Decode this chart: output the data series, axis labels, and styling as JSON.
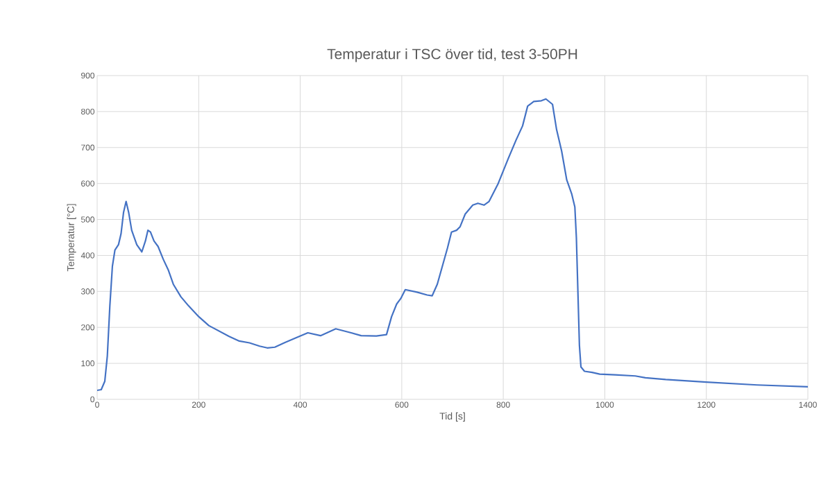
{
  "chart_data": {
    "type": "line",
    "title": "Temperatur i TSC över tid, test 3-50PH",
    "xlabel": "Tid [s]",
    "ylabel": "Temperatur [°C]",
    "xlim": [
      0,
      1400
    ],
    "xticks": [
      0,
      200,
      400,
      600,
      800,
      1000,
      1200,
      1400
    ],
    "ylim": [
      0,
      900
    ],
    "yticks": [
      0,
      100,
      200,
      300,
      400,
      500,
      600,
      700,
      800,
      900
    ],
    "grid": true,
    "marker": "none",
    "line_style": "solid",
    "series": [
      {
        "color": "#4472c4",
        "x": [
          0,
          8,
          15,
          20,
          25,
          30,
          35,
          42,
          47,
          52,
          57,
          62,
          68,
          78,
          88,
          95,
          100,
          105,
          112,
          120,
          130,
          140,
          150,
          165,
          180,
          200,
          220,
          240,
          260,
          280,
          300,
          320,
          335,
          350,
          370,
          390,
          415,
          440,
          470,
          495,
          520,
          550,
          570,
          580,
          590,
          598,
          607,
          630,
          650,
          660,
          670,
          680,
          690,
          698,
          708,
          715,
          725,
          740,
          750,
          762,
          772,
          790,
          810,
          825,
          838,
          848,
          860,
          875,
          884,
          897,
          905,
          915,
          925,
          935,
          941,
          944,
          947,
          950,
          953,
          960,
          975,
          990,
          1020,
          1060,
          1080,
          1120,
          1200,
          1300,
          1400
        ],
        "values": [
          25,
          27,
          50,
          120,
          260,
          370,
          415,
          430,
          460,
          520,
          550,
          520,
          470,
          430,
          410,
          440,
          470,
          465,
          440,
          425,
          390,
          360,
          320,
          285,
          260,
          230,
          205,
          190,
          175,
          162,
          157,
          148,
          143,
          145,
          158,
          170,
          185,
          177,
          196,
          187,
          177,
          176,
          180,
          230,
          265,
          280,
          305,
          298,
          290,
          288,
          320,
          370,
          420,
          465,
          470,
          480,
          515,
          540,
          545,
          540,
          550,
          600,
          670,
          720,
          760,
          815,
          828,
          830,
          835,
          820,
          750,
          690,
          610,
          570,
          535,
          450,
          300,
          150,
          90,
          78,
          75,
          70,
          68,
          65,
          60,
          55,
          48,
          40,
          35
        ]
      }
    ]
  }
}
